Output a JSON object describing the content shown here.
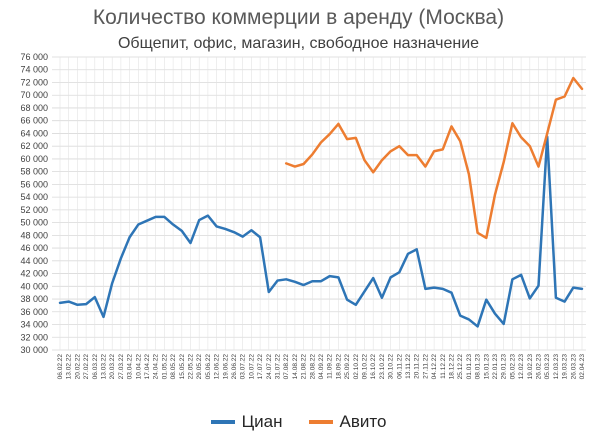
{
  "chart_data": {
    "type": "line",
    "title": "Количество коммерции в аренду (Москва)",
    "subtitle": "Общепит, офис, магазин, свободное назначение",
    "ylim": [
      30000,
      76000
    ],
    "ytick_step": 2000,
    "y_tick_labels": [
      "30 000",
      "32 000",
      "34 000",
      "36 000",
      "38 000",
      "40 000",
      "42 000",
      "44 000",
      "46 000",
      "48 000",
      "50 000",
      "52 000",
      "54 000",
      "56 000",
      "58 000",
      "60 000",
      "62 000",
      "64 000",
      "66 000",
      "68 000",
      "70 000",
      "72 000",
      "74 000",
      "76 000"
    ],
    "grid": true,
    "legend": "bottom",
    "x": [
      "06.02.22",
      "13.02.22",
      "20.02.22",
      "27.02.22",
      "06.03.22",
      "13.03.22",
      "20.03.22",
      "27.03.22",
      "03.04.22",
      "10.04.22",
      "17.04.22",
      "24.04.22",
      "01.05.22",
      "08.05.22",
      "15.05.22",
      "22.05.22",
      "29.05.22",
      "05.06.22",
      "12.06.22",
      "19.06.22",
      "26.06.22",
      "03.07.22",
      "10.07.22",
      "17.07.22",
      "24.07.22",
      "31.07.22",
      "07.08.22",
      "14.08.22",
      "21.08.22",
      "28.08.22",
      "04.09.22",
      "11.09.22",
      "18.09.22",
      "25.09.22",
      "02.10.22",
      "09.10.22",
      "16.10.22",
      "23.10.22",
      "30.10.22",
      "06.11.22",
      "13.11.22",
      "20.11.22",
      "27.11.22",
      "04.12.22",
      "11.12.22",
      "18.12.22",
      "25.12.22",
      "01.01.23",
      "08.01.23",
      "15.01.23",
      "22.01.23",
      "29.01.23",
      "05.02.23",
      "12.02.23",
      "19.02.23",
      "26.02.23",
      "05.03.23",
      "12.03.23",
      "19.03.23",
      "26.03.23",
      "02.04.23"
    ],
    "x_tick_labels": [
      "06.02.22",
      "13.02.22",
      "20.02.22",
      "27.02.22",
      "06.03.22",
      "13.03.22",
      "20.03.22",
      "27.03.22",
      "03.04.22",
      "10.04.22",
      "17.04.22",
      "24.04.22",
      "01.05.22",
      "08.05.22",
      "15.05.22",
      "22.05.22",
      "29.05.22",
      "05.06.22",
      "12.06.22",
      "19.06.22",
      "26.06.22",
      "03.07.22",
      "10.07.22",
      "17.07.22",
      "24.07.22",
      "31.07.22",
      "07.08.22",
      "14.08.22",
      "21.08.22",
      "28.08.22",
      "04.09.22",
      "11.09.22",
      "18.09.22",
      "25.09.22",
      "02.10.22",
      "09.10.22",
      "16.10.22",
      "23.10.22",
      "30.10.22",
      "06.11.22",
      "13.11.22",
      "20.11.22",
      "27.11.22",
      "04.12.22",
      "11.12.22",
      "18.12.22",
      "25.12.22",
      "01.01.23",
      "08.01.23",
      "15.01.23",
      "22.01.23",
      "29.01.23",
      "05.02.23",
      "12.02.23",
      "19.02.23",
      "26.02.23",
      "05.03.23",
      "12.03.23",
      "19.03.23",
      "26.03.23",
      "02.04.23"
    ],
    "series": [
      {
        "name": "Циан",
        "color": "#2e75b6",
        "values": [
          37400,
          37600,
          37100,
          37200,
          38300,
          35200,
          40500,
          44400,
          47700,
          49700,
          50300,
          50900,
          50900,
          49700,
          48700,
          46800,
          50400,
          51100,
          49400,
          49000,
          48500,
          47800,
          48800,
          47700,
          39100,
          40900,
          41100,
          40700,
          40200,
          40800,
          40800,
          41600,
          41400,
          37900,
          37100,
          39200,
          41300,
          38200,
          41400,
          42200,
          45100,
          45800,
          39600,
          39800,
          39600,
          39000,
          35400,
          34800,
          33700,
          37900,
          35700,
          34100,
          41100,
          41800,
          38100,
          40100,
          63500,
          38200,
          37600,
          39800,
          39600
        ]
      },
      {
        "name": "Авито",
        "color": "#ed7d31",
        "values": [
          null,
          null,
          null,
          null,
          null,
          null,
          null,
          null,
          null,
          null,
          null,
          null,
          null,
          null,
          null,
          null,
          null,
          null,
          null,
          null,
          null,
          null,
          null,
          null,
          null,
          null,
          59300,
          58800,
          59200,
          60700,
          62600,
          63900,
          65500,
          63100,
          63300,
          59800,
          57900,
          59800,
          61200,
          62000,
          60600,
          60600,
          58800,
          61200,
          61500,
          65100,
          62800,
          57600,
          48400,
          47600,
          54400,
          59500,
          65600,
          63400,
          62000,
          58800,
          64000,
          69300,
          69800,
          72700,
          71000
        ]
      }
    ]
  }
}
